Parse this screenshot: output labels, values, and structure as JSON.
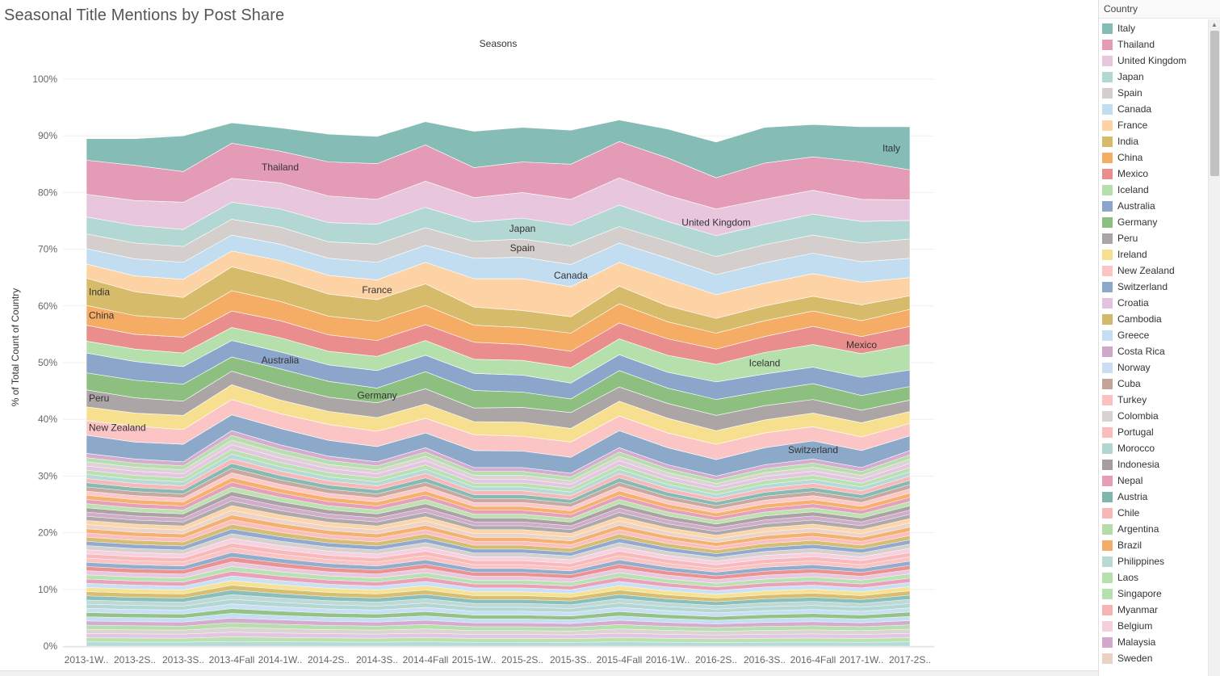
{
  "page": {
    "title": "Seasonal Title Mentions by Post Share"
  },
  "legend": {
    "title": "Country",
    "items": [
      {
        "label": "Italy",
        "color": "#86bcb6"
      },
      {
        "label": "Thailand",
        "color": "#e49bb6"
      },
      {
        "label": "United Kingdom",
        "color": "#e8c6dd"
      },
      {
        "label": "Japan",
        "color": "#b3d8d4"
      },
      {
        "label": "Spain",
        "color": "#d4cfcc"
      },
      {
        "label": "Canada",
        "color": "#c2dcf0"
      },
      {
        "label": "France",
        "color": "#fdd3a6"
      },
      {
        "label": "India",
        "color": "#d6bb6b"
      },
      {
        "label": "China",
        "color": "#f5ad66"
      },
      {
        "label": "Mexico",
        "color": "#ea8d8d"
      },
      {
        "label": "Iceland",
        "color": "#b5e0ac"
      },
      {
        "label": "Australia",
        "color": "#8ba5cb"
      },
      {
        "label": "Germany",
        "color": "#8dc080"
      },
      {
        "label": "Peru",
        "color": "#aba5a5"
      },
      {
        "label": "Ireland",
        "color": "#f6e08f"
      },
      {
        "label": "New Zealand",
        "color": "#fcc5c5"
      },
      {
        "label": "Switzerland",
        "color": "#8da9c9"
      },
      {
        "label": "Croatia",
        "color": "#e3c2e0"
      },
      {
        "label": "Cambodia",
        "color": "#d3b96b"
      },
      {
        "label": "Greece",
        "color": "#c6def3"
      },
      {
        "label": "Costa Rica",
        "color": "#cfa8c9"
      },
      {
        "label": "Norway",
        "color": "#c9def2"
      },
      {
        "label": "Cuba",
        "color": "#c4a49a"
      },
      {
        "label": "Turkey",
        "color": "#fbc1c1"
      },
      {
        "label": "Colombia",
        "color": "#d8d2d0"
      },
      {
        "label": "Portugal",
        "color": "#fbbcbc"
      },
      {
        "label": "Morocco",
        "color": "#b1d5d1"
      },
      {
        "label": "Indonesia",
        "color": "#a69e9e"
      },
      {
        "label": "Nepal",
        "color": "#e99db5"
      },
      {
        "label": "Austria",
        "color": "#7fb6af"
      },
      {
        "label": "Chile",
        "color": "#f8b6b6"
      },
      {
        "label": "Argentina",
        "color": "#b3dca8"
      },
      {
        "label": "Brazil",
        "color": "#f3ad69"
      },
      {
        "label": "Philippines",
        "color": "#b9d8d6"
      },
      {
        "label": "Laos",
        "color": "#b8e0ad"
      },
      {
        "label": "Singapore",
        "color": "#b5e0b0"
      },
      {
        "label": "Myanmar",
        "color": "#f5b4b4"
      },
      {
        "label": "Belgium",
        "color": "#f6cfdd"
      },
      {
        "label": "Malaysia",
        "color": "#d2a8cd"
      },
      {
        "label": "Sweden",
        "color": "#ebd2c5"
      }
    ]
  },
  "chart_data": {
    "type": "area",
    "stacked": true,
    "normalized": true,
    "title": "Seasons",
    "xlabel": "",
    "ylabel": "% of Total Count of Country",
    "ylim": [
      0,
      100
    ],
    "yticks": [
      "0%",
      "10%",
      "20%",
      "30%",
      "40%",
      "50%",
      "60%",
      "70%",
      "80%",
      "90%",
      "100%"
    ],
    "categories": [
      "2013-1W..",
      "2013-2S..",
      "2013-3S..",
      "2013-4Fall",
      "2014-1W..",
      "2014-2S..",
      "2014-3S..",
      "2014-4Fall",
      "2015-1W..",
      "2015-2S..",
      "2015-3S..",
      "2015-4Fall",
      "2016-1W..",
      "2016-2S..",
      "2016-3S..",
      "2016-4Fall",
      "2017-1W..",
      "2017-2S.."
    ],
    "other_countries_color": "#d9cfe8",
    "other_countries_boundaries": [
      34,
      33,
      32.5,
      38,
      35.5,
      33.5,
      32.5,
      35,
      31.5,
      31.5,
      30.5,
      35,
      32,
      30,
      32,
      33,
      31.5,
      34.5
    ],
    "series": [
      {
        "name": "Switzerland",
        "values": [
          3.2,
          3.0,
          3.1,
          2.8,
          2.9,
          2.8,
          2.7,
          2.6,
          3.0,
          2.9,
          2.8,
          3.0,
          3.0,
          2.9,
          3.0,
          3.2,
          3.0,
          2.6
        ]
      },
      {
        "name": "New Zealand",
        "values": [
          2.6,
          2.8,
          2.6,
          2.7,
          2.6,
          2.8,
          2.7,
          2.6,
          2.8,
          2.6,
          2.7,
          2.6,
          2.6,
          2.7,
          2.6,
          2.5,
          2.4,
          2.2
        ]
      },
      {
        "name": "Ireland",
        "values": [
          2.4,
          2.3,
          2.5,
          2.6,
          2.4,
          2.3,
          2.4,
          2.5,
          2.3,
          2.5,
          2.4,
          2.6,
          2.6,
          2.4,
          2.3,
          2.4,
          2.5,
          2.1
        ]
      },
      {
        "name": "Peru",
        "values": [
          3.0,
          2.7,
          2.5,
          2.4,
          2.6,
          2.5,
          2.6,
          2.7,
          2.4,
          2.6,
          2.8,
          2.5,
          2.6,
          2.7,
          2.5,
          2.4,
          2.2,
          2.0
        ]
      },
      {
        "name": "Germany",
        "values": [
          3.0,
          3.1,
          3.0,
          2.5,
          2.9,
          2.8,
          2.6,
          3.0,
          3.1,
          2.7,
          2.4,
          2.9,
          2.7,
          2.8,
          2.6,
          2.8,
          2.6,
          2.4
        ]
      },
      {
        "name": "Australia",
        "values": [
          3.5,
          3.3,
          3.1,
          2.9,
          3.0,
          2.9,
          3.1,
          2.9,
          3.0,
          3.0,
          2.8,
          2.8,
          2.8,
          3.1,
          3.0,
          2.9,
          3.2,
          2.9
        ]
      },
      {
        "name": "Iceland",
        "values": [
          2.1,
          2.2,
          2.4,
          2.3,
          2.5,
          2.4,
          2.5,
          2.6,
          2.5,
          2.6,
          2.7,
          2.8,
          3.0,
          3.1,
          3.8,
          4.0,
          4.2,
          4.5
        ]
      },
      {
        "name": "Mexico",
        "values": [
          2.8,
          2.6,
          2.8,
          2.9,
          3.0,
          2.9,
          2.8,
          2.8,
          3.0,
          2.8,
          2.9,
          2.8,
          2.9,
          2.7,
          2.8,
          3.2,
          3.0,
          3.2
        ]
      },
      {
        "name": "China",
        "values": [
          3.5,
          3.3,
          3.2,
          3.6,
          3.4,
          3.3,
          3.4,
          3.4,
          3.0,
          3.0,
          3.2,
          3.4,
          3.0,
          2.8,
          2.8,
          2.7,
          2.8,
          3.0
        ]
      },
      {
        "name": "India",
        "values": [
          4.8,
          4.2,
          3.8,
          4.2,
          4.0,
          3.9,
          3.8,
          3.8,
          3.2,
          3.0,
          2.9,
          3.1,
          2.8,
          2.6,
          2.6,
          2.6,
          2.8,
          2.4
        ]
      },
      {
        "name": "France",
        "values": [
          2.5,
          2.8,
          3.2,
          2.8,
          3.2,
          3.3,
          3.5,
          3.8,
          5.0,
          5.6,
          5.3,
          4.2,
          4.8,
          4.2,
          4.0,
          4.0,
          4.0,
          3.2
        ]
      },
      {
        "name": "Canada",
        "values": [
          2.7,
          3.0,
          3.0,
          2.8,
          2.9,
          3.0,
          3.1,
          3.0,
          3.6,
          3.8,
          3.9,
          3.4,
          3.6,
          3.5,
          3.6,
          3.6,
          3.6,
          3.4
        ]
      },
      {
        "name": "Spain",
        "values": [
          2.6,
          2.8,
          2.8,
          2.8,
          3.0,
          2.9,
          3.2,
          3.1,
          3.0,
          3.2,
          3.3,
          2.9,
          3.0,
          3.2,
          3.2,
          3.2,
          3.3,
          3.4
        ]
      },
      {
        "name": "Japan",
        "values": [
          3.0,
          3.1,
          3.0,
          3.0,
          3.2,
          3.4,
          3.5,
          3.6,
          3.4,
          3.7,
          3.6,
          3.8,
          3.5,
          3.7,
          3.6,
          3.7,
          3.8,
          3.3
        ]
      },
      {
        "name": "United Kingdom",
        "values": [
          4.0,
          4.4,
          4.8,
          4.2,
          4.6,
          4.7,
          4.4,
          4.6,
          4.3,
          4.5,
          4.6,
          4.8,
          4.6,
          4.7,
          4.4,
          4.2,
          3.9,
          3.6
        ]
      },
      {
        "name": "Thailand",
        "values": [
          6.0,
          6.2,
          5.4,
          6.2,
          5.6,
          6.0,
          6.3,
          6.4,
          5.3,
          5.4,
          6.2,
          6.4,
          6.6,
          5.5,
          6.4,
          5.9,
          6.6,
          5.3
        ]
      },
      {
        "name": "Italy",
        "values": [
          3.8,
          4.7,
          6.3,
          3.6,
          4.1,
          4.9,
          4.8,
          4.1,
          6.4,
          6.1,
          6.0,
          3.8,
          5.1,
          6.3,
          6.3,
          5.7,
          6.2,
          7.6
        ]
      }
    ],
    "annotations": [
      {
        "text": "Italy",
        "series": "Italy",
        "category": "2017-2S.."
      },
      {
        "text": "Thailand",
        "series": "Thailand",
        "category": "2014-1W.."
      },
      {
        "text": "United Kingdom",
        "series": "United Kingdom",
        "category": "2016-2S.."
      },
      {
        "text": "Japan",
        "series": "Japan",
        "category": "2015-2S.."
      },
      {
        "text": "Spain",
        "series": "Spain",
        "category": "2015-2S.."
      },
      {
        "text": "Canada",
        "series": "Canada",
        "category": "2015-3S.."
      },
      {
        "text": "France",
        "series": "France",
        "category": "2014-3S.."
      },
      {
        "text": "India",
        "series": "India",
        "category": "2013-1W.."
      },
      {
        "text": "China",
        "series": "China",
        "category": "2013-1W.."
      },
      {
        "text": "Mexico",
        "series": "Mexico",
        "category": "2017-1W.."
      },
      {
        "text": "Iceland",
        "series": "Iceland",
        "category": "2016-3S.."
      },
      {
        "text": "Australia",
        "series": "Australia",
        "category": "2014-1W.."
      },
      {
        "text": "Germany",
        "series": "Germany",
        "category": "2014-3S.."
      },
      {
        "text": "Peru",
        "series": "Peru",
        "category": "2013-1W.."
      },
      {
        "text": "New Zealand",
        "series": "New Zealand",
        "category": "2013-1W.."
      },
      {
        "text": "Switzerland",
        "series": "Switzerland",
        "category": "2016-4Fall"
      }
    ]
  }
}
